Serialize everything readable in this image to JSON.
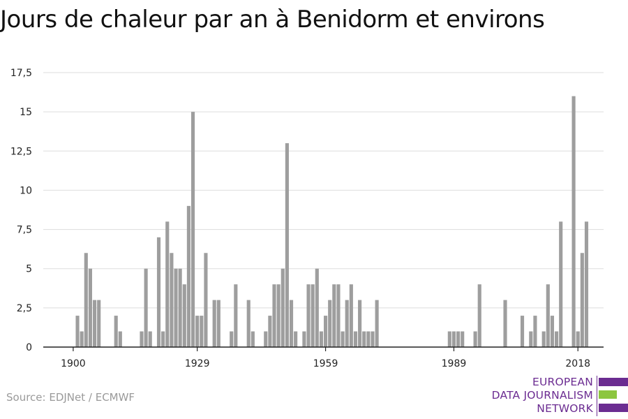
{
  "title": "Jours de chaleur par an à Benidorm et environs",
  "source": "Source: EDJNet / ECMWF",
  "logo": {
    "lines": [
      "EUROPEAN",
      "DATA JOURNALISM",
      "NETWORK"
    ],
    "colors": {
      "purple": "#6b2c91",
      "green": "#8cc63f"
    }
  },
  "chart_data": {
    "type": "bar",
    "title": "Jours de chaleur par an à Benidorm et environs",
    "xlabel": "",
    "ylabel": "",
    "color": "#9e9e9e",
    "xlim": [
      1893,
      2024
    ],
    "ylim": [
      0,
      17.5
    ],
    "x_ticks": [
      1900,
      1929,
      1959,
      1989,
      2018
    ],
    "y_ticks": [
      0,
      2.5,
      5,
      7.5,
      10,
      12.5,
      15,
      17.5
    ],
    "y_tick_labels": [
      "0",
      "2,5",
      "5",
      "7,5",
      "10",
      "12,5",
      "15",
      "17,5"
    ],
    "grid": "horizontal",
    "x": [
      1901,
      1902,
      1903,
      1904,
      1905,
      1906,
      1907,
      1908,
      1909,
      1910,
      1911,
      1912,
      1913,
      1914,
      1915,
      1916,
      1917,
      1918,
      1919,
      1920,
      1921,
      1922,
      1923,
      1924,
      1925,
      1926,
      1927,
      1928,
      1929,
      1930,
      1931,
      1932,
      1933,
      1934,
      1935,
      1936,
      1937,
      1938,
      1939,
      1940,
      1941,
      1942,
      1943,
      1944,
      1945,
      1946,
      1947,
      1948,
      1949,
      1950,
      1951,
      1952,
      1953,
      1954,
      1955,
      1956,
      1957,
      1958,
      1959,
      1960,
      1961,
      1962,
      1963,
      1964,
      1965,
      1966,
      1967,
      1968,
      1969,
      1970,
      1971,
      1972,
      1973,
      1974,
      1975,
      1976,
      1977,
      1978,
      1979,
      1980,
      1981,
      1982,
      1983,
      1984,
      1985,
      1986,
      1987,
      1988,
      1989,
      1990,
      1991,
      1992,
      1993,
      1994,
      1995,
      1996,
      1997,
      1998,
      1999,
      2000,
      2001,
      2002,
      2003,
      2004,
      2005,
      2006,
      2007,
      2008,
      2009,
      2010,
      2011,
      2012,
      2013,
      2014,
      2015,
      2016,
      2017,
      2018,
      2019,
      2020
    ],
    "values": [
      2,
      1,
      6,
      5,
      3,
      3,
      0,
      0,
      0,
      2,
      1,
      0,
      0,
      0,
      0,
      1,
      5,
      1,
      0,
      7,
      1,
      8,
      6,
      5,
      5,
      4,
      9,
      15,
      2,
      2,
      6,
      0,
      3,
      3,
      0,
      0,
      1,
      4,
      0,
      0,
      3,
      1,
      0,
      0,
      1,
      2,
      4,
      4,
      5,
      13,
      3,
      1,
      0,
      1,
      4,
      4,
      5,
      1,
      2,
      3,
      4,
      4,
      1,
      3,
      4,
      1,
      3,
      1,
      1,
      1,
      3,
      0,
      0,
      0,
      0,
      0,
      0,
      0,
      0,
      0,
      0,
      0,
      0,
      0,
      0,
      0,
      0,
      1,
      1,
      1,
      1,
      0,
      0,
      1,
      4,
      0,
      0,
      0,
      0,
      0,
      3,
      0,
      0,
      0,
      2,
      0,
      1,
      2,
      0,
      1,
      4,
      2,
      1,
      8,
      0,
      0,
      16,
      1,
      6,
      8
    ]
  }
}
